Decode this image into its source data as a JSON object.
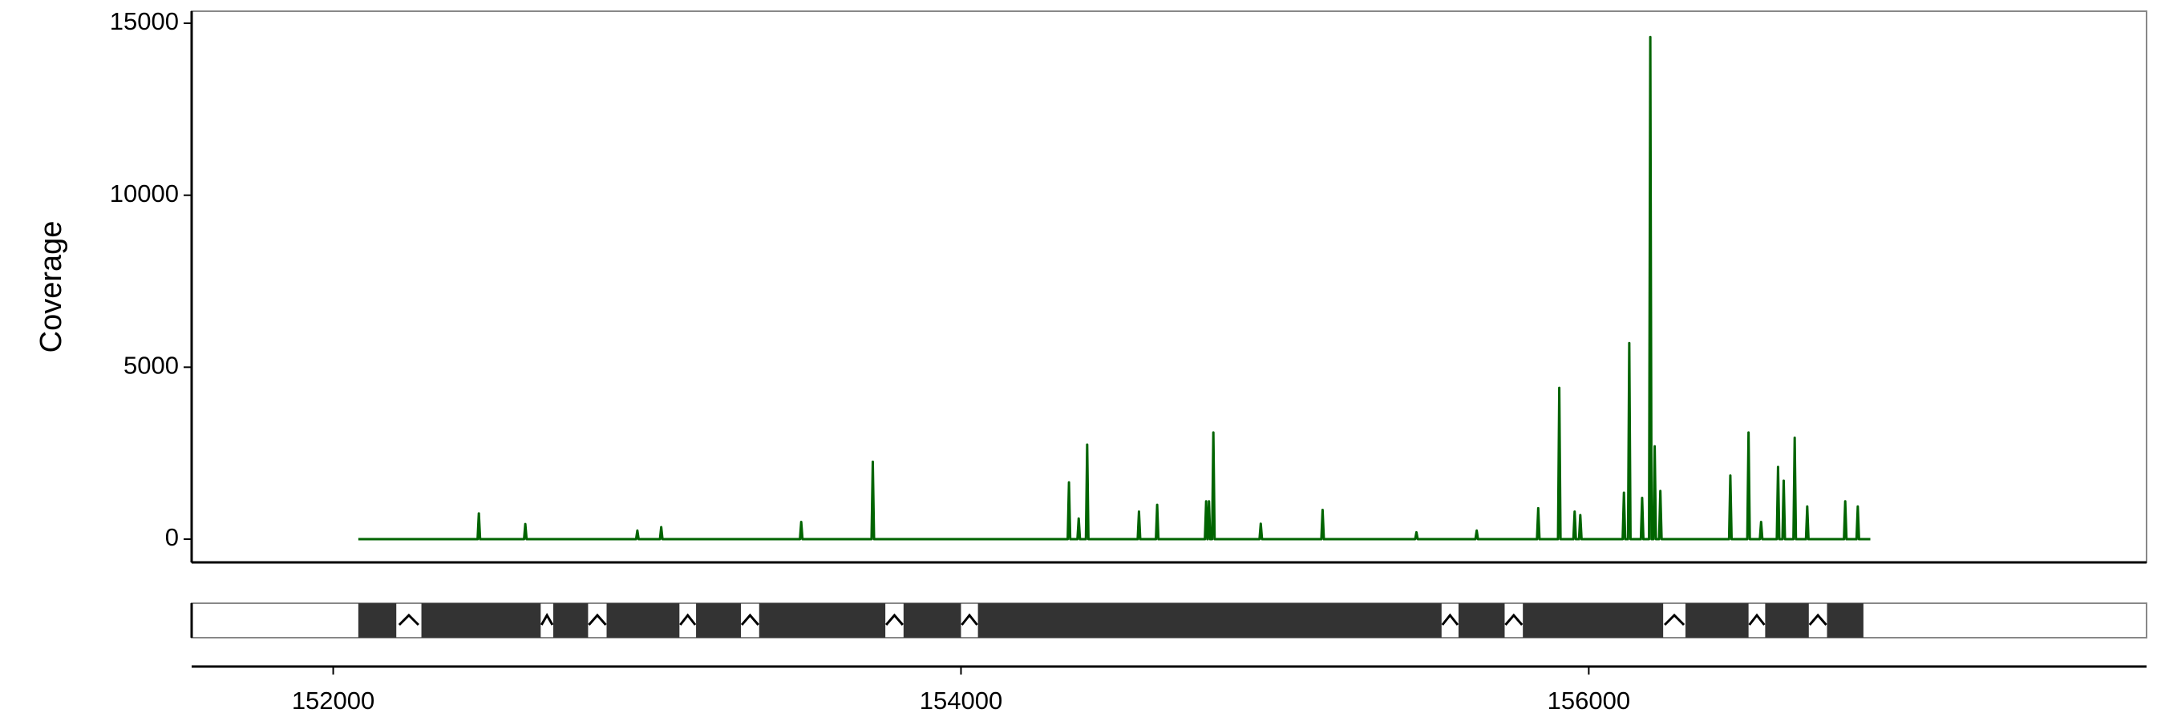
{
  "chart_data": {
    "type": "line",
    "y_label": "Coverage",
    "xlim": [
      151549,
      157777
    ],
    "xticks": [
      152000,
      154000,
      156000
    ],
    "ylim": [
      -675,
      15350
    ],
    "yticks": [
      0,
      5000,
      10000,
      15000
    ],
    "series": [
      {
        "color": "#006400",
        "x": [
          152080,
          152460,
          152464,
          152468,
          152608,
          152612,
          152616,
          152965,
          152969,
          152973,
          153041,
          153045,
          153049,
          153487,
          153491,
          153495,
          153715,
          153719,
          153723,
          154340,
          154344,
          154348,
          154371,
          154375,
          154379,
          154398,
          154402,
          154406,
          154563,
          154567,
          154571,
          154621,
          154625,
          154629,
          154777,
          154781,
          154785,
          154786,
          154790,
          154794,
          154800,
          154804,
          154808,
          154951,
          154955,
          154959,
          155148,
          155152,
          155156,
          155447,
          155451,
          155455,
          155639,
          155643,
          155647,
          155835,
          155839,
          155843,
          155902,
          155906,
          155910,
          155951,
          155955,
          155959,
          155969,
          155973,
          155977,
          156108,
          156112,
          156116,
          156125,
          156129,
          156133,
          156166,
          156170,
          156174,
          156192,
          156196,
          156200,
          156206,
          156210,
          156214,
          156224,
          156228,
          156232,
          156447,
          156451,
          156455,
          156505,
          156509,
          156513,
          156545,
          156549,
          156553,
          156599,
          156603,
          156607,
          156617,
          156621,
          156625,
          156652,
          156656,
          156660,
          156692,
          156696,
          156700,
          156813,
          156817,
          156821,
          156853,
          156857,
          156861,
          156897
        ],
        "values": [
          0,
          0,
          750,
          0,
          0,
          440,
          0,
          0,
          250,
          0,
          0,
          350,
          0,
          0,
          500,
          0,
          0,
          2250,
          0,
          0,
          1650,
          0,
          0,
          600,
          0,
          0,
          2750,
          0,
          0,
          800,
          0,
          0,
          1000,
          0,
          0,
          1100,
          0,
          0,
          1100,
          0,
          0,
          3100,
          0,
          0,
          450,
          0,
          0,
          850,
          0,
          0,
          200,
          0,
          0,
          250,
          0,
          0,
          900,
          0,
          0,
          4400,
          0,
          0,
          800,
          0,
          0,
          700,
          0,
          0,
          1350,
          0,
          0,
          5700,
          0,
          0,
          1200,
          0,
          0,
          14600,
          0,
          0,
          2700,
          0,
          0,
          1400,
          0,
          0,
          1850,
          0,
          0,
          3100,
          0,
          0,
          500,
          0,
          0,
          2100,
          0,
          0,
          1700,
          0,
          0,
          2950,
          0,
          0,
          950,
          0,
          0,
          1100,
          0,
          0,
          950,
          0,
          0
        ]
      }
    ],
    "exon_color": "#333333",
    "exons": [
      [
        152080,
        152201
      ],
      [
        152281,
        152661
      ],
      [
        152701,
        152812
      ],
      [
        152871,
        153103
      ],
      [
        153156,
        153299
      ],
      [
        153357,
        153759
      ],
      [
        153817,
        154000
      ],
      [
        154054,
        155531
      ],
      [
        155585,
        155732
      ],
      [
        155790,
        156237
      ],
      [
        156308,
        156509
      ],
      [
        156562,
        156701
      ],
      [
        156759,
        156875
      ]
    ]
  }
}
